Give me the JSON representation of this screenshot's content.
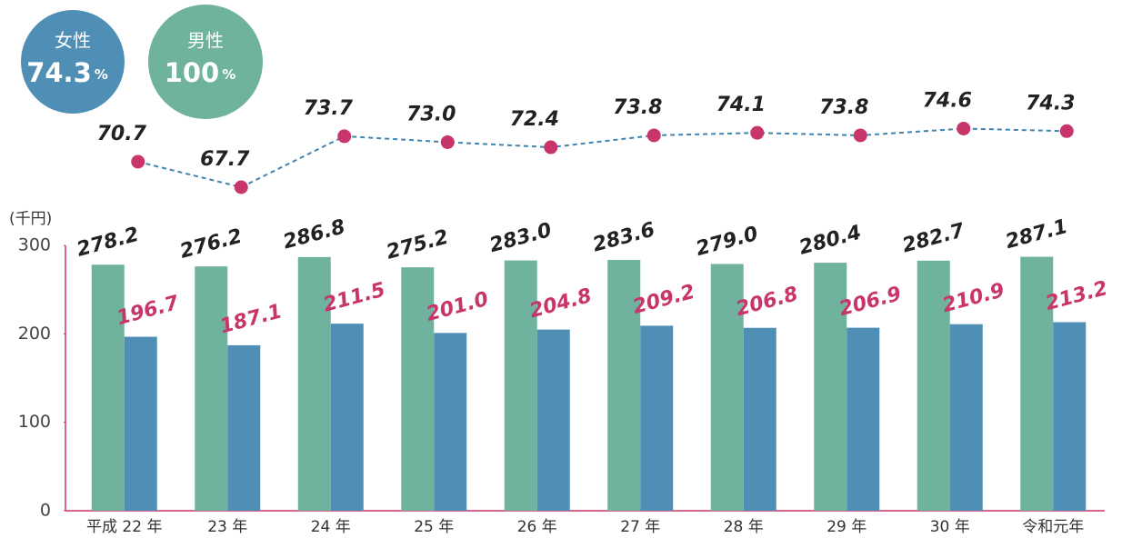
{
  "chart_data": {
    "type": "bar",
    "y_axis_label": "(千円)",
    "categories": [
      "平成 22 年",
      "23 年",
      "24 年",
      "25 年",
      "26 年",
      "27 年",
      "28 年",
      "29 年",
      "30 年",
      "令和元年"
    ],
    "ylim": [
      0,
      300
    ],
    "yticks": [
      0,
      100,
      200,
      300
    ],
    "y2lim": [
      60,
      80
    ],
    "series": [
      {
        "name": "男性",
        "color": "#6fb39f",
        "badge_value": 100,
        "badge_unit": "%",
        "values": [
          278.2,
          276.2,
          286.8,
          275.2,
          283.0,
          283.6,
          279.0,
          280.4,
          282.7,
          287.1
        ],
        "value_labels": [
          "278.2",
          "276.2",
          "286.8",
          "275.2",
          "283.0",
          "283.6",
          "279.0",
          "280.4",
          "282.7",
          "287.1"
        ]
      },
      {
        "name": "女性",
        "color": "#4f8fb5",
        "badge_value": 74.3,
        "badge_unit": "%",
        "values": [
          196.7,
          187.1,
          211.5,
          201.0,
          204.8,
          209.2,
          206.8,
          206.9,
          210.9,
          213.2
        ],
        "value_labels": [
          "196.7",
          "187.1",
          "211.5",
          "201.0",
          "204.8",
          "209.2",
          "206.8",
          "206.9",
          "210.9",
          "213.2"
        ]
      },
      {
        "type": "line",
        "axis": "y2",
        "color": "#c8356a",
        "line_color": "#3f83b0",
        "values": [
          70.7,
          67.7,
          73.7,
          73.0,
          72.4,
          73.8,
          74.1,
          73.8,
          74.6,
          74.3
        ],
        "value_labels": [
          "70.7",
          "67.7",
          "73.7",
          "73.0",
          "72.4",
          "73.8",
          "74.1",
          "73.8",
          "74.6",
          "74.3"
        ]
      }
    ]
  }
}
